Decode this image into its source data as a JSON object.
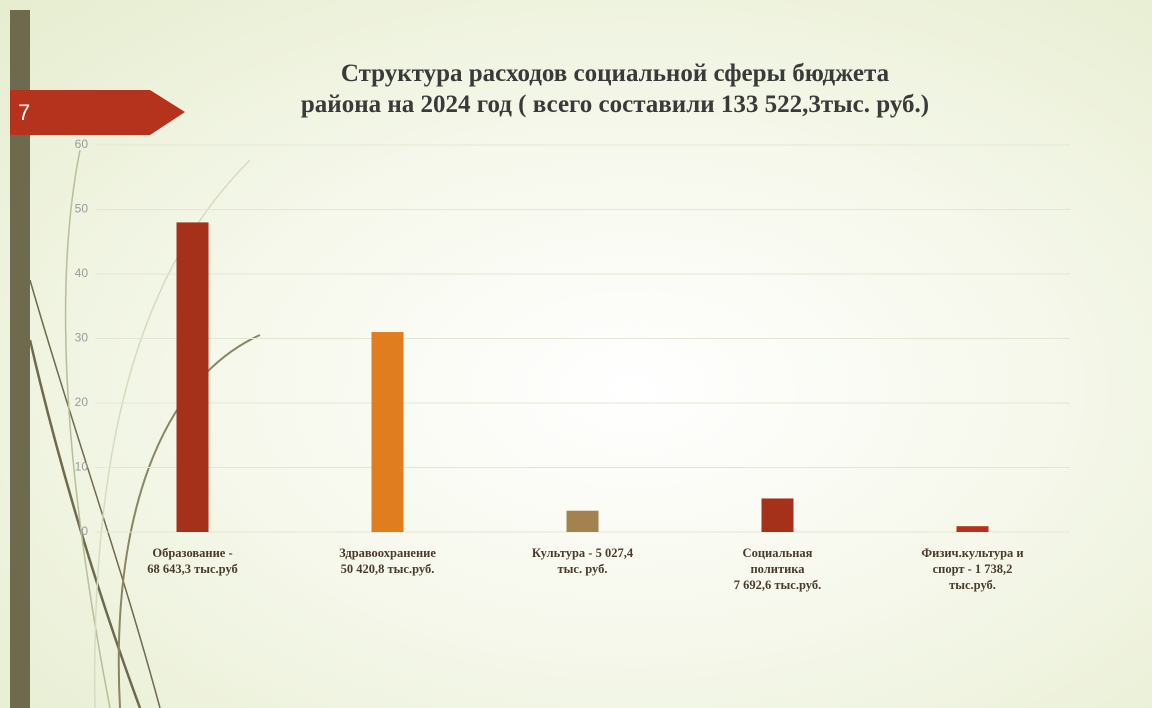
{
  "slide_number": "7",
  "chart_data": {
    "type": "bar",
    "title": "Структура расходов социальной сферы бюджета\nрайона на 2024 год ( всего составили 133 522,3тыс. руб.)",
    "categories": [
      "Образование -\n68 643,3 тыс.руб",
      "Здравоохранение\n50 420,8 тыс.руб.",
      "Культура -     5 027,4\nтыс. руб.",
      "Социальная\nполитика\n7 692,6 тыс.руб.",
      "Физич.культура и\nспорт  - 1 738,2\nтыс.руб."
    ],
    "values": [
      48,
      31,
      3.3,
      5.2,
      0.9
    ],
    "colors": [
      "#a5311a",
      "#e07d1e",
      "#a38250",
      "#a5311a",
      "#b5321c"
    ],
    "ylim": [
      0,
      60
    ],
    "yticks": [
      0,
      10,
      20,
      30,
      40,
      50,
      60
    ],
    "grid": true
  }
}
